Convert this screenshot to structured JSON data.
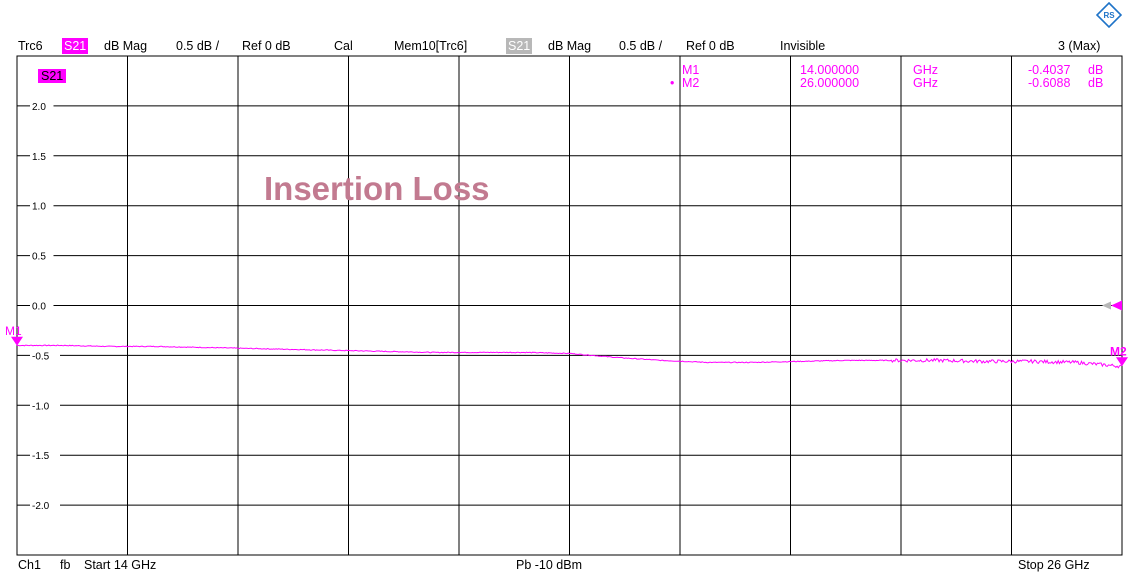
{
  "header": {
    "trace": "Trc6",
    "trace_param": "S21",
    "trace_format": "dB Mag",
    "trace_scale": "0.5 dB /",
    "trace_ref": "Ref 0 dB",
    "cal": "Cal",
    "mem_trace": "Mem10[Trc6]",
    "mem_param": "S21",
    "mem_format": "dB Mag",
    "mem_scale": "0.5 dB /",
    "mem_ref": "Ref 0 dB",
    "mem_state": "Invisible",
    "marker_count": "3 (Max)"
  },
  "trace_label": "S21",
  "annotation": "Insertion Loss",
  "markers": [
    {
      "name": "M1",
      "active": false,
      "freq": "14.000000",
      "freq_unit": "GHz",
      "value": "-0.4037",
      "value_unit": "dB"
    },
    {
      "name": "M2",
      "active": true,
      "freq": "26.000000",
      "freq_unit": "GHz",
      "value": "-0.6088",
      "value_unit": "dB"
    }
  ],
  "footer": {
    "channel": "Ch1",
    "mode": "fb",
    "start": "Start  14 GHz",
    "power": "Pb   -10 dBm",
    "stop": "Stop  26 GHz"
  },
  "colors": {
    "trace": "#ff00ff",
    "annotation": "#c27a90",
    "grid": "#000000",
    "memory_tag": "#b8b8b8"
  },
  "chart_data": {
    "type": "line",
    "xlabel": "",
    "ylabel": "",
    "xlim": [
      14,
      26
    ],
    "ylim": [
      -2.5,
      2.5
    ],
    "x_unit": "GHz",
    "y_unit": "dB",
    "yticks": [
      2.0,
      1.5,
      1.0,
      0.5,
      0.0,
      -0.5,
      -1.0,
      -1.5,
      -2.0
    ],
    "ytick_labels": [
      "2.0",
      "1.5",
      "1.0",
      "0.5",
      "0.0",
      "-0.5",
      "-1.0",
      "-1.5",
      "-2.0"
    ],
    "grid": true,
    "reference_level": 0.0,
    "series": [
      {
        "x": [
          14.0,
          14.5,
          15.0,
          15.5,
          16.0,
          16.5,
          17.0,
          17.5,
          18.0,
          18.5,
          19.0,
          19.5,
          20.0,
          20.5,
          21.0,
          21.5,
          22.0,
          22.5,
          23.0,
          23.5,
          24.0,
          24.5,
          25.0,
          25.5,
          26.0
        ],
        "y": [
          -0.4,
          -0.4,
          -0.41,
          -0.41,
          -0.42,
          -0.43,
          -0.44,
          -0.45,
          -0.46,
          -0.47,
          -0.47,
          -0.47,
          -0.48,
          -0.52,
          -0.55,
          -0.57,
          -0.57,
          -0.56,
          -0.55,
          -0.55,
          -0.55,
          -0.56,
          -0.56,
          -0.57,
          -0.61
        ]
      }
    ],
    "markers": [
      {
        "name": "M1",
        "x": 14.0,
        "y": -0.4037
      },
      {
        "name": "M2",
        "x": 26.0,
        "y": -0.6088
      }
    ]
  }
}
